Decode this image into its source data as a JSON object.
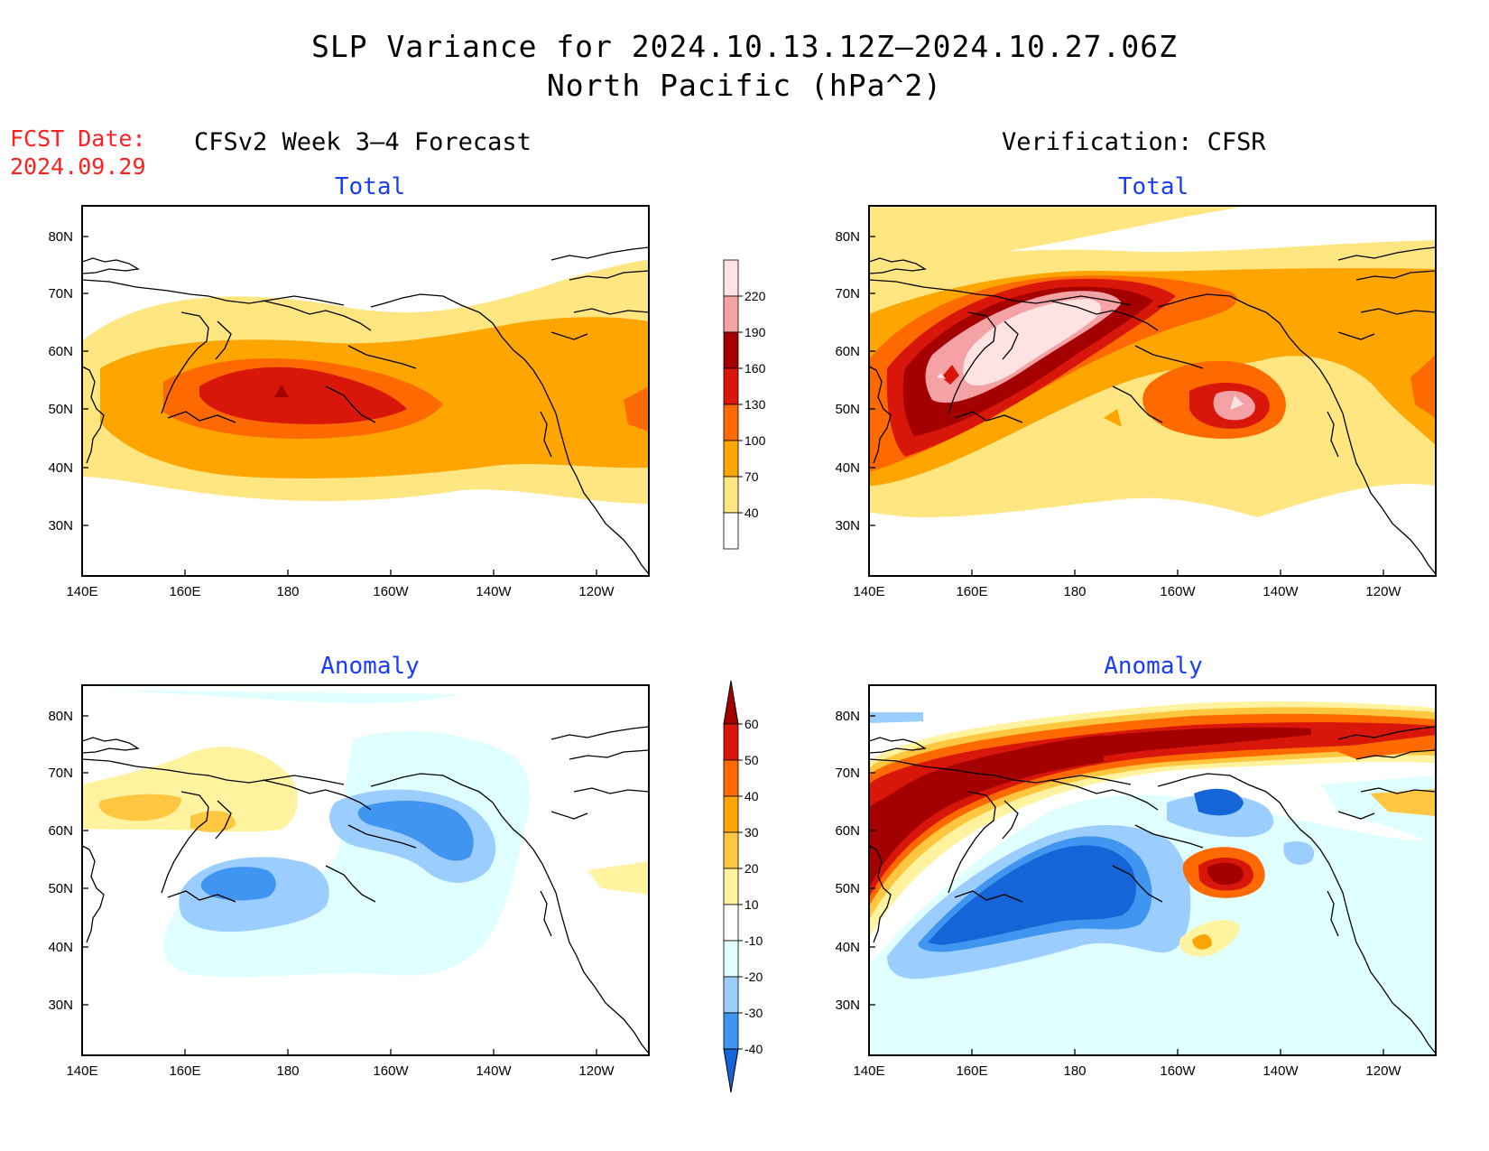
{
  "title_line1": "SLP Variance for 2024.10.13.12Z–2024.10.27.06Z",
  "title_line2": "North Pacific (hPa^2)",
  "fcst_date_label": "FCST Date:",
  "fcst_date_value": "2024.09.29",
  "left_column_title": "CFSv2 Week 3–4 Forecast",
  "right_column_title": "Verification: CFSR",
  "panels": [
    {
      "id": "fcst-total",
      "subtitle": "Total"
    },
    {
      "id": "verif-total",
      "subtitle": "Total"
    },
    {
      "id": "fcst-anomaly",
      "subtitle": "Anomaly"
    },
    {
      "id": "verif-anomaly",
      "subtitle": "Anomaly"
    }
  ],
  "lon_labels": [
    "140E",
    "160E",
    "180",
    "160W",
    "140W",
    "120W"
  ],
  "lat_labels": [
    "80N",
    "70N",
    "60N",
    "50N",
    "40N",
    "30N"
  ],
  "total_colorbar": {
    "labels": [
      "220",
      "190",
      "160",
      "130",
      "100",
      "70",
      "40"
    ],
    "colors": [
      "#ffe3e3",
      "#f4a2a5",
      "#a50000",
      "#d8160a",
      "#ff6a00",
      "#ffa500",
      "#ffe680",
      "#ffffff"
    ]
  },
  "anomaly_colorbar": {
    "labels": [
      "60",
      "50",
      "40",
      "30",
      "20",
      "10",
      "-10",
      "-20",
      "-30",
      "-40"
    ],
    "colors": [
      "#a50000",
      "#d8160a",
      "#ff6a00",
      "#ffa500",
      "#ffc640",
      "#fff3a0",
      "#ffffff",
      "#e0ffff",
      "#9ccdff",
      "#4095f0",
      "#1565d8"
    ]
  }
}
